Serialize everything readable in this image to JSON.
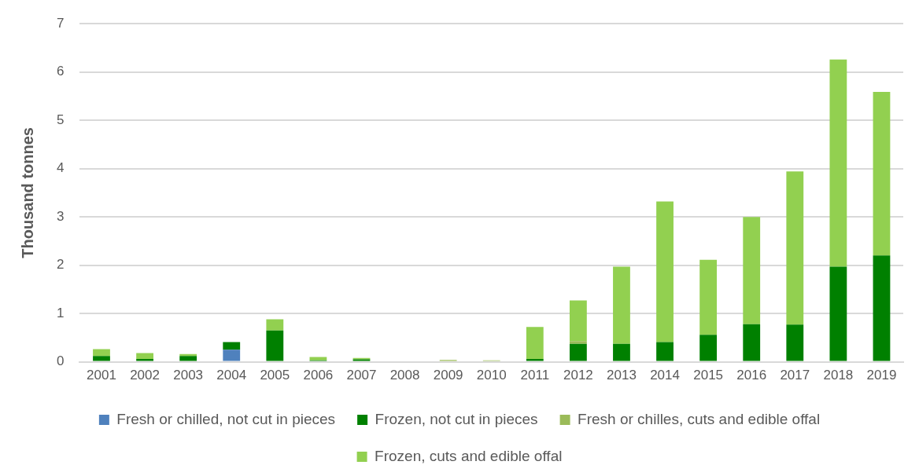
{
  "chart_data": {
    "type": "bar",
    "stacked": true,
    "ylabel": "Thousand tonnes",
    "categories": [
      "2001",
      "2002",
      "2003",
      "2004",
      "2005",
      "2006",
      "2007",
      "2008",
      "2009",
      "2010",
      "2011",
      "2012",
      "2013",
      "2014",
      "2015",
      "2016",
      "2017",
      "2018",
      "2019"
    ],
    "series": [
      {
        "name": "Fresh or chilled, not cut in pieces",
        "color": "#4f81bd",
        "values": [
          0,
          0,
          0,
          0.25,
          0,
          0,
          0,
          0,
          0,
          0,
          0,
          0,
          0,
          0,
          0,
          0,
          0,
          0,
          0
        ]
      },
      {
        "name": "Frozen, not cut in pieces",
        "color": "#008000",
        "values": [
          0.12,
          0.06,
          0.12,
          0.16,
          0.65,
          0.03,
          0.05,
          0,
          0,
          0,
          0.06,
          0.37,
          0.37,
          0.41,
          0.56,
          0.78,
          0.77,
          1.97,
          2.2
        ]
      },
      {
        "name": "Fresh or chilles, cuts and edible offal",
        "color": "#9bbb59",
        "values": [
          0,
          0,
          0,
          0,
          0,
          0,
          0,
          0,
          0.04,
          0.03,
          0,
          0.06,
          0,
          0,
          0,
          0,
          0,
          0,
          0
        ]
      },
      {
        "name": "Frozen, cuts and edible offal",
        "color": "#92d050",
        "values": [
          0.14,
          0.12,
          0.04,
          0,
          0.23,
          0.07,
          0.03,
          0,
          0,
          0,
          0.66,
          0.84,
          1.6,
          2.91,
          1.55,
          2.22,
          3.17,
          4.29,
          3.39
        ]
      }
    ],
    "ylim": [
      0,
      7
    ],
    "yticks": [
      0,
      1,
      2,
      3,
      4,
      5,
      6,
      7
    ],
    "grid": "y",
    "legend": "bottom"
  }
}
